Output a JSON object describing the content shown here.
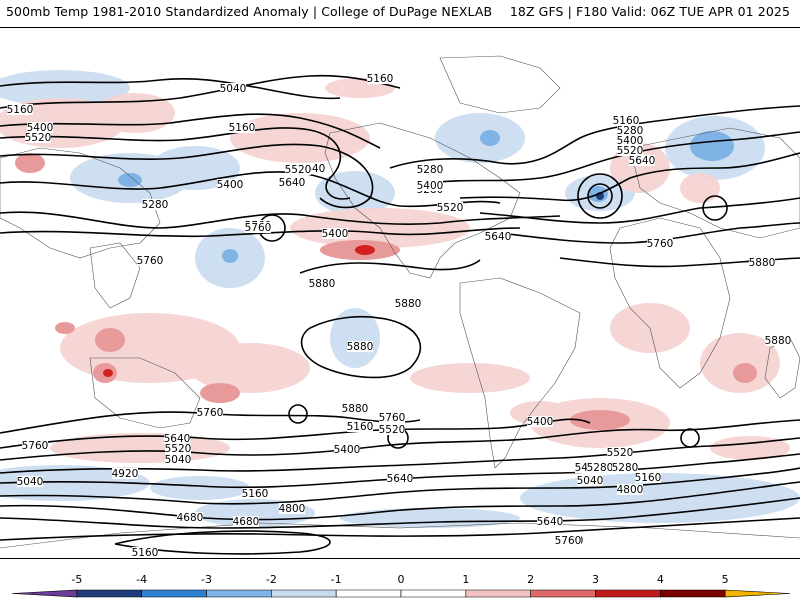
{
  "header": {
    "left": "500mb Temp 1981-2010 Standardized Anomaly | College of DuPage NEXLAB",
    "right": "18Z GFS | F180 Valid: 06Z TUE APR 01 2025"
  },
  "contour_labels": [
    "5160",
    "5040",
    "5160",
    "5400",
    "5520",
    "5160",
    "5280",
    "5640",
    "5400",
    "5520",
    "5640",
    "5760",
    "5400",
    "5280",
    "5760",
    "5760",
    "5880",
    "5160",
    "5280",
    "5400",
    "5520",
    "5640",
    "5280",
    "5400",
    "5520",
    "5640",
    "5760",
    "5880",
    "5880",
    "5880",
    "5880",
    "5760",
    "5880",
    "5760",
    "5640",
    "5520",
    "5400",
    "5160",
    "5040",
    "5640",
    "5760",
    "5520",
    "5400",
    "5280",
    "5160",
    "5040",
    "4920",
    "4800",
    "4680",
    "4680",
    "5160",
    "5040",
    "4920",
    "4800",
    "5640",
    "5760",
    "5400",
    "5520",
    "5280",
    "5160",
    "5040"
  ],
  "colorbar": {
    "ticks": [
      "-5",
      "-4",
      "-3",
      "-2",
      "-1",
      "0",
      "1",
      "2",
      "3",
      "4",
      "5"
    ],
    "colors": [
      "#6a3d9a",
      "#1f3d7a",
      "#2f7fd0",
      "#7fb2e5",
      "#c6dbef",
      "#ffffff",
      "#ffffff",
      "#f4c2c2",
      "#e06a6a",
      "#c21b1b",
      "#7a0000",
      "#f0b400"
    ]
  }
}
